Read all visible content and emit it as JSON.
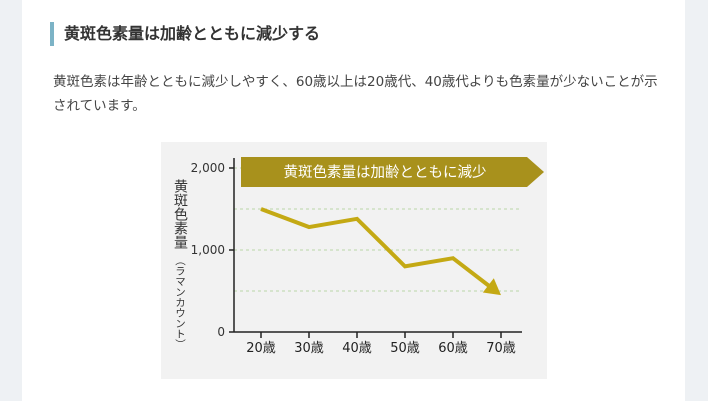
{
  "article": {
    "heading": "黄斑色素量は加齢とともに減少する",
    "paragraph": "黄斑色素は年齢とともに減少しやすく、60歳以上は20歳代、40歳代よりも色素量が少ないことが示されています。"
  },
  "colors": {
    "accent_bar": "#7cb3c6",
    "series_line": "#c4a914",
    "banner": "#a8911c"
  },
  "chart_data": {
    "type": "line",
    "title": "黄斑色素量は加齢とともに減少",
    "ylabel_main": "黄斑色素量",
    "ylabel_unit": "（ラマンカウント）",
    "x": [
      "20歳",
      "30歳",
      "40歳",
      "50歳",
      "60歳",
      "70歳"
    ],
    "y_ticks": [
      "0",
      "1,000",
      "2,000"
    ],
    "series": [
      {
        "values": [
          1500,
          1280,
          1380,
          800,
          900,
          450
        ]
      }
    ],
    "ylim": [
      0,
      2000
    ],
    "grid": "dashed horizontal",
    "arrow_at_end": true
  }
}
